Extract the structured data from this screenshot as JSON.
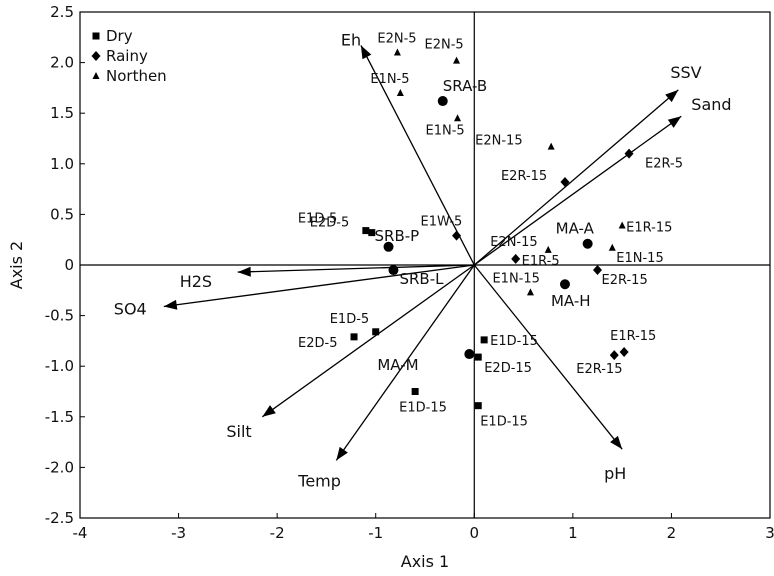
{
  "chart_data": {
    "type": "scatter",
    "title": "",
    "xlabel": "Axis 1",
    "ylabel": "Axis 2",
    "xlim": [
      -4,
      3
    ],
    "ylim": [
      -2.5,
      2.5
    ],
    "x_ticks": [
      "-4",
      "-3",
      "-2",
      "-1",
      "0",
      "1",
      "2",
      "3"
    ],
    "y_ticks": [
      "2.5",
      "2.0",
      "1.5",
      "1.0",
      "0.5",
      "0",
      "-0.5",
      "-1.0",
      "-1.5",
      "-2.0",
      "-2.5"
    ],
    "grid": false,
    "legend": {
      "position": "top-left",
      "entries": [
        {
          "name": "Dry",
          "marker": "square"
        },
        {
          "name": "Rainy",
          "marker": "diamond"
        },
        {
          "name": "Northen",
          "marker": "triangle"
        }
      ]
    },
    "series": [
      {
        "name": "Dry",
        "marker": "square",
        "points": [
          {
            "label": "E1D-5",
            "x": -1.1,
            "y": 0.34
          },
          {
            "label": "E2D-5",
            "x": -1.04,
            "y": 0.32
          },
          {
            "label": "E1D-5",
            "x": -1.0,
            "y": -0.66
          },
          {
            "label": "E2D-5",
            "x": -1.22,
            "y": -0.71
          },
          {
            "label": "E1D-15",
            "x": 0.1,
            "y": -0.74
          },
          {
            "label": "E2D-15",
            "x": 0.04,
            "y": -0.91
          },
          {
            "label": "E1D-15",
            "x": -0.6,
            "y": -1.25
          },
          {
            "label": "E1D-15",
            "x": 0.04,
            "y": -1.39
          }
        ]
      },
      {
        "name": "Rainy",
        "marker": "diamond",
        "points": [
          {
            "label": "E1W-5",
            "x": -0.18,
            "y": 0.29
          },
          {
            "label": "E2R-15",
            "x": 0.92,
            "y": 0.82
          },
          {
            "label": "E2R-5",
            "x": 1.57,
            "y": 1.1
          },
          {
            "label": "E1R-5",
            "x": 0.42,
            "y": 0.06
          },
          {
            "label": "E2R-15",
            "x": 1.25,
            "y": -0.05
          },
          {
            "label": "E1R-15",
            "x": 1.52,
            "y": -0.86
          },
          {
            "label": "E2R-15",
            "x": 1.42,
            "y": -0.89
          }
        ]
      },
      {
        "name": "Northen",
        "marker": "triangle",
        "points": [
          {
            "label": "E2N-5",
            "x": -0.78,
            "y": 2.1
          },
          {
            "label": "E2N-5",
            "x": -0.18,
            "y": 2.02
          },
          {
            "label": "E1N-5",
            "x": -0.75,
            "y": 1.7
          },
          {
            "label": "E1N-5",
            "x": -0.17,
            "y": 1.45
          },
          {
            "label": "E2N-15",
            "x": 0.78,
            "y": 1.17
          },
          {
            "label": "E1R-15",
            "x": 1.5,
            "y": 0.39
          },
          {
            "label": "E2N-15",
            "x": 0.75,
            "y": 0.15
          },
          {
            "label": "E1N-15",
            "x": 1.4,
            "y": 0.17
          },
          {
            "label": "E1N-15",
            "x": 0.57,
            "y": -0.27
          }
        ]
      }
    ],
    "sites": [
      {
        "label": "SRA-B",
        "x": -0.32,
        "y": 1.62
      },
      {
        "label": "SRB-P",
        "x": -0.87,
        "y": 0.18
      },
      {
        "label": "SRB-L",
        "x": -0.82,
        "y": -0.05
      },
      {
        "label": "MA-A",
        "x": 1.15,
        "y": 0.21
      },
      {
        "label": "MA-H",
        "x": 0.92,
        "y": -0.19
      },
      {
        "label": "MA-M",
        "x": -0.05,
        "y": -0.88
      }
    ],
    "vectors": [
      {
        "name": "Eh",
        "x": -1.15,
        "y": 2.17
      },
      {
        "name": "SSV",
        "x": 2.07,
        "y": 1.73
      },
      {
        "name": "Sand",
        "x": 2.1,
        "y": 1.47
      },
      {
        "name": "H2S",
        "x": -2.4,
        "y": -0.07
      },
      {
        "name": "SO4",
        "x": -3.15,
        "y": -0.41
      },
      {
        "name": "Silt",
        "x": -2.15,
        "y": -1.5
      },
      {
        "name": "Temp",
        "x": -1.4,
        "y": -1.93
      },
      {
        "name": "pH",
        "x": 1.5,
        "y": -1.82
      }
    ]
  }
}
